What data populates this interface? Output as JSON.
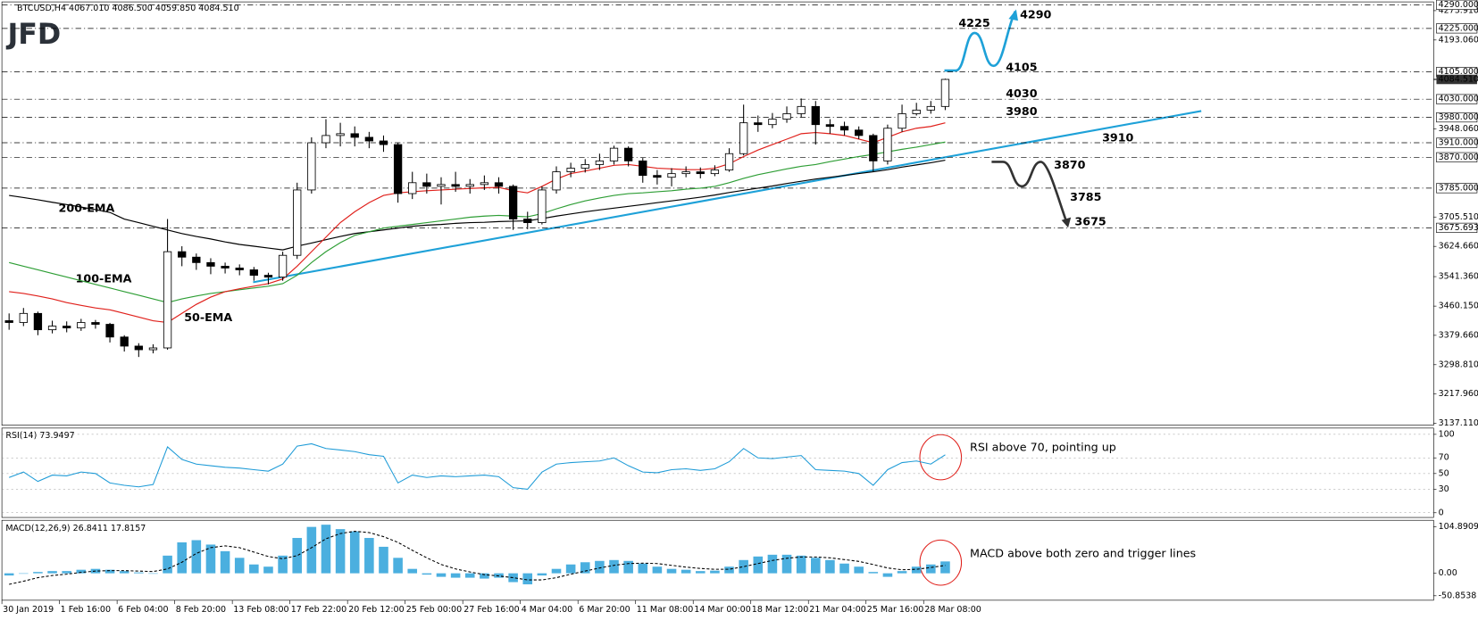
{
  "chart_data": {
    "type": "candlestick",
    "symbol_info": "BTCUSD,H4  4067.010 4086.500 4059.850 4084.510",
    "logo": "JFD",
    "categories": [
      "30 Jan 2019",
      null,
      null,
      null,
      "1 Feb 16:00",
      null,
      null,
      null,
      "6 Feb 04:00",
      null,
      null,
      null,
      "8 Feb 20:00",
      null,
      null,
      null,
      "13 Feb 08:00",
      null,
      null,
      null,
      "17 Feb 22:00",
      null,
      null,
      null,
      "20 Feb 12:00",
      null,
      null,
      null,
      "25 Feb 00:00",
      null,
      null,
      null,
      "27 Feb 16:00",
      null,
      null,
      null,
      "4 Mar 04:00",
      null,
      null,
      null,
      "6 Mar 20:00",
      null,
      null,
      null,
      "11 Mar 08:00",
      null,
      null,
      null,
      "14 Mar 00:00",
      null,
      null,
      null,
      "18 Mar 12:00",
      null,
      null,
      null,
      "21 Mar 04:00",
      null,
      null,
      null,
      "25 Mar 16:00",
      null,
      null,
      null,
      "28 Mar 08:00",
      null
    ],
    "open": [
      3420,
      3415,
      3440,
      3395,
      3405,
      3400,
      3415,
      3410,
      3375,
      3350,
      3340,
      3345,
      3610,
      3595,
      3580,
      3570,
      3565,
      3560,
      3545,
      3540,
      3600,
      3780,
      3910,
      3930,
      3935,
      3925,
      3915,
      3905,
      3770,
      3800,
      3790,
      3795,
      3790,
      3795,
      3800,
      3790,
      3700,
      3690,
      3780,
      3830,
      3840,
      3850,
      3860,
      3895,
      3860,
      3820,
      3815,
      3825,
      3830,
      3825,
      3835,
      3880,
      3965,
      3960,
      3975,
      3990,
      4010,
      3960,
      3955,
      3945,
      3930,
      3860,
      3950,
      3990,
      4000,
      4010
    ],
    "high": [
      3440,
      3455,
      3445,
      3420,
      3418,
      3425,
      3422,
      3414,
      3380,
      3358,
      3355,
      3700,
      3625,
      3605,
      3592,
      3580,
      3575,
      3568,
      3552,
      3610,
      3800,
      3925,
      3975,
      3965,
      3955,
      3940,
      3930,
      3910,
      3830,
      3825,
      3815,
      3830,
      3810,
      3820,
      3815,
      3795,
      3720,
      3790,
      3845,
      3855,
      3865,
      3880,
      3902,
      3900,
      3868,
      3835,
      3840,
      3845,
      3842,
      3848,
      3895,
      4015,
      3985,
      3992,
      4010,
      4032,
      4025,
      3975,
      3968,
      3955,
      3935,
      3960,
      4015,
      4020,
      4025,
      4086.5
    ],
    "low": [
      3395,
      3405,
      3380,
      3385,
      3388,
      3392,
      3398,
      3360,
      3335,
      3320,
      3330,
      3340,
      3570,
      3560,
      3548,
      3550,
      3545,
      3530,
      3520,
      3530,
      3590,
      3770,
      3895,
      3900,
      3900,
      3895,
      3885,
      3745,
      3755,
      3770,
      3740,
      3775,
      3770,
      3780,
      3770,
      3670,
      3672,
      3685,
      3770,
      3815,
      3828,
      3835,
      3850,
      3845,
      3800,
      3795,
      3790,
      3815,
      3812,
      3818,
      3830,
      3875,
      3940,
      3950,
      3965,
      3980,
      3905,
      3935,
      3930,
      3920,
      3830,
      3850,
      3940,
      3985,
      3990,
      4000
    ],
    "close": [
      3415,
      3440,
      3395,
      3405,
      3400,
      3415,
      3410,
      3375,
      3350,
      3340,
      3345,
      3610,
      3595,
      3580,
      3570,
      3565,
      3560,
      3545,
      3540,
      3600,
      3780,
      3910,
      3930,
      3935,
      3925,
      3915,
      3905,
      3770,
      3800,
      3790,
      3795,
      3790,
      3795,
      3800,
      3790,
      3700,
      3690,
      3780,
      3830,
      3840,
      3850,
      3860,
      3895,
      3860,
      3820,
      3815,
      3825,
      3830,
      3825,
      3835,
      3880,
      3965,
      3960,
      3975,
      3990,
      4010,
      3960,
      3955,
      3945,
      3930,
      3860,
      3950,
      3990,
      4000,
      4010,
      4084.51
    ],
    "bull_color": "#ffffff",
    "bear_color": "#000000",
    "ylim": [
      3132,
      4298
    ],
    "yticks": [
      {
        "value": 4273.91,
        "label": "4273.910"
      },
      {
        "value": 4193.06,
        "label": "4193.060"
      },
      {
        "value": 3948.06,
        "label": "3948.060"
      },
      {
        "value": 3705.51,
        "label": "3705.510"
      },
      {
        "value": 3624.66,
        "label": "3624.660"
      },
      {
        "value": 3541.36,
        "label": "3541.360"
      },
      {
        "value": 3460.15,
        "label": "3460.150"
      },
      {
        "value": 3379.66,
        "label": "3379.660"
      },
      {
        "value": 3298.81,
        "label": "3298.810"
      },
      {
        "value": 3217.96,
        "label": "3217.960"
      },
      {
        "value": 3137.11,
        "label": "3137.110"
      }
    ],
    "levels": [
      {
        "value": 4290,
        "label": "4290.000"
      },
      {
        "value": 4225,
        "label": "4225.000"
      },
      {
        "value": 4105,
        "label": "4105.000"
      },
      {
        "value": 4030,
        "label": "4030.000"
      },
      {
        "value": 3980,
        "label": "3980.000"
      },
      {
        "value": 3910,
        "label": "3910.000"
      },
      {
        "value": 3870,
        "label": "3870.000"
      },
      {
        "value": 3785,
        "label": "3785.000"
      },
      {
        "value": 3675.693,
        "label": "3675.693"
      }
    ],
    "last_price": {
      "value": 4084.51,
      "label": "4084.510"
    },
    "overlays": [
      {
        "name": "200-EMA",
        "color": "#000000",
        "values": [
          3765,
          3759,
          3753,
          3746,
          3740,
          3733,
          3726,
          3718,
          3700,
          3690,
          3680,
          3670,
          3660,
          3652,
          3645,
          3637,
          3630,
          3625,
          3620,
          3615,
          3625,
          3634,
          3643,
          3652,
          3660,
          3665,
          3670,
          3675,
          3680,
          3683,
          3685,
          3688,
          3690,
          3691,
          3693,
          3694,
          3695,
          3701,
          3708,
          3714,
          3720,
          3725,
          3730,
          3735,
          3740,
          3745,
          3750,
          3755,
          3760,
          3766,
          3773,
          3779,
          3785,
          3791,
          3798,
          3804,
          3810,
          3815,
          3820,
          3825,
          3830,
          3836,
          3843,
          3849,
          3855,
          3862
        ]
      },
      {
        "name": "100-EMA",
        "color": "#2e9e35",
        "values": [
          3580,
          3570,
          3560,
          3550,
          3540,
          3530,
          3520,
          3510,
          3500,
          3490,
          3480,
          3470,
          3480,
          3488,
          3495,
          3500,
          3505,
          3510,
          3515,
          3522,
          3545,
          3580,
          3610,
          3635,
          3655,
          3665,
          3675,
          3680,
          3685,
          3690,
          3695,
          3700,
          3705,
          3708,
          3710,
          3708,
          3706,
          3715,
          3728,
          3740,
          3750,
          3758,
          3765,
          3770,
          3772,
          3775,
          3778,
          3782,
          3785,
          3790,
          3800,
          3812,
          3822,
          3830,
          3838,
          3845,
          3850,
          3858,
          3865,
          3872,
          3878,
          3885,
          3892,
          3898,
          3905,
          3912
        ]
      },
      {
        "name": "50-EMA",
        "color": "#e0201b",
        "values": [
          3500,
          3495,
          3488,
          3480,
          3470,
          3462,
          3455,
          3450,
          3440,
          3430,
          3420,
          3415,
          3440,
          3465,
          3485,
          3500,
          3508,
          3515,
          3522,
          3535,
          3570,
          3610,
          3650,
          3690,
          3720,
          3745,
          3765,
          3772,
          3775,
          3778,
          3780,
          3782,
          3784,
          3786,
          3787,
          3778,
          3772,
          3790,
          3810,
          3825,
          3832,
          3840,
          3848,
          3850,
          3845,
          3840,
          3838,
          3836,
          3836,
          3840,
          3852,
          3872,
          3890,
          3905,
          3920,
          3935,
          3938,
          3935,
          3930,
          3920,
          3910,
          3925,
          3940,
          3950,
          3955,
          3965
        ]
      }
    ],
    "trend_color": "#1ea1d8",
    "annotations": [
      {
        "text": "4225",
        "color": "#1ea1d8"
      },
      {
        "text": "4290",
        "color": "#1ea1d8"
      },
      {
        "text": "4105",
        "color": "#1ea1d8"
      },
      {
        "text": "4030",
        "color": "#1ea1d8"
      },
      {
        "text": "3980",
        "color": "#1ea1d8"
      },
      {
        "text": "3910",
        "color": "#333333"
      },
      {
        "text": "3870",
        "color": "#333333"
      },
      {
        "text": "3785",
        "color": "#333333"
      },
      {
        "text": "3675",
        "color": "#333333"
      }
    ],
    "rsi": {
      "title": "RSI(14) 73.9497",
      "color": "#1e9bd7",
      "ylim": [
        -6,
        108
      ],
      "yticks": [
        100,
        70,
        50,
        30,
        0
      ],
      "grid": true,
      "values": [
        45,
        52,
        40,
        48,
        47,
        52,
        50,
        38,
        35,
        33,
        36,
        84,
        68,
        62,
        60,
        58,
        57,
        55,
        53,
        62,
        85,
        88,
        82,
        80,
        78,
        74,
        72,
        38,
        48,
        45,
        47,
        46,
        47,
        48,
        46,
        32,
        30,
        52,
        62,
        64,
        65,
        66,
        70,
        60,
        52,
        51,
        55,
        56,
        54,
        56,
        65,
        82,
        70,
        69,
        71,
        73,
        55,
        54,
        53,
        50,
        35,
        55,
        64,
        66,
        62,
        73.9497
      ]
    },
    "macd": {
      "title": "MACD(12,26,9) 26.8411 17.8157",
      "ylim": [
        -61,
        120
      ],
      "yticks": [
        104.8909,
        {
          "value": 0,
          "label": "0.00"
        },
        -50.8538
      ],
      "histogram": {
        "color": "#1e9bd7",
        "values": [
          -5,
          0,
          3,
          5,
          5,
          8,
          10,
          8,
          5,
          2,
          0,
          40,
          70,
          75,
          65,
          50,
          35,
          20,
          15,
          40,
          80,
          105,
          110,
          100,
          95,
          80,
          60,
          35,
          10,
          -3,
          -8,
          -10,
          -10,
          -12,
          -10,
          -20,
          -25,
          -5,
          10,
          20,
          25,
          28,
          30,
          28,
          22,
          15,
          10,
          8,
          5,
          6,
          15,
          30,
          38,
          42,
          42,
          40,
          35,
          30,
          22,
          15,
          3,
          -8,
          5,
          15,
          20,
          26.8411
        ]
      },
      "signal": {
        "color": "#000000",
        "values": [
          -25,
          -18,
          -10,
          -5,
          -2,
          2,
          5,
          6,
          6,
          5,
          4,
          10,
          25,
          45,
          58,
          62,
          58,
          48,
          38,
          33,
          40,
          58,
          78,
          90,
          95,
          92,
          83,
          70,
          52,
          35,
          20,
          10,
          3,
          -3,
          -6,
          -10,
          -15,
          -15,
          -10,
          -2,
          5,
          12,
          18,
          22,
          23,
          22,
          18,
          14,
          11,
          9,
          9,
          15,
          22,
          29,
          34,
          37,
          37,
          35,
          31,
          27,
          20,
          12,
          8,
          9,
          13,
          17.8157
        ]
      }
    },
    "notes": [
      "RSI above 70, pointing up",
      "MACD above both zero and trigger lines"
    ],
    "note_color": "#e0201b"
  }
}
